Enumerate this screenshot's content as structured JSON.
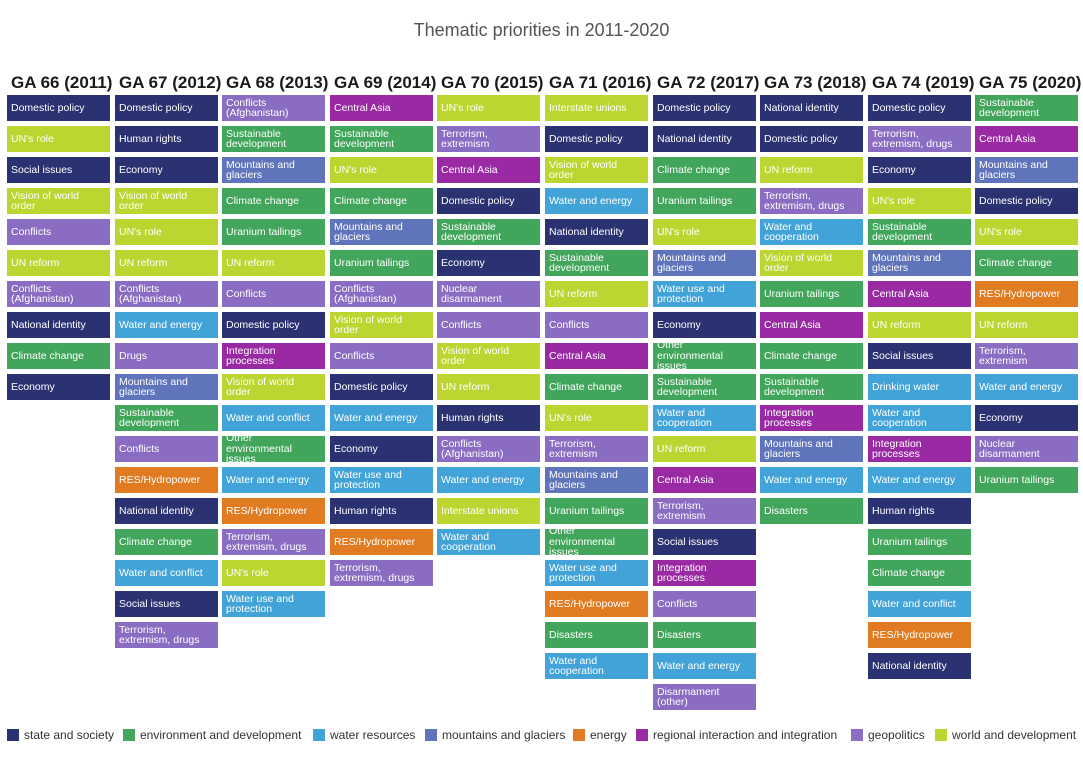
{
  "title": "Thematic priorities in 2011-2020",
  "categories": {
    "state": {
      "label": "state and society",
      "color": "#2a3272"
    },
    "env": {
      "label": "environment and development",
      "color": "#41a55b"
    },
    "water": {
      "label": "water resources",
      "color": "#41a3d7"
    },
    "mtn": {
      "label": "mountains and glaciers",
      "color": "#5f74ba"
    },
    "energy": {
      "label": "energy",
      "color": "#e07b22"
    },
    "regional": {
      "label": "regional interaction and integration",
      "color": "#9a2aa4"
    },
    "geo": {
      "label": "geopolitics",
      "color": "#8a6cc2"
    },
    "world": {
      "label": "world and development",
      "color": "#bcd530"
    }
  },
  "legend_order": [
    "state",
    "env",
    "water",
    "mtn",
    "energy",
    "regional",
    "geo",
    "world"
  ],
  "chart_data": {
    "type": "table",
    "columns": [
      {
        "header": "GA 66 (2011)",
        "items": [
          {
            "label": "Domestic policy",
            "cat": "state"
          },
          {
            "label": "UN's role",
            "cat": "world"
          },
          {
            "label": "Social issues",
            "cat": "state"
          },
          {
            "label": "Vision of world order",
            "cat": "world"
          },
          {
            "label": "Conflicts",
            "cat": "geo"
          },
          {
            "label": "UN reform",
            "cat": "world"
          },
          {
            "label": "Conflicts (Afghanistan)",
            "cat": "geo"
          },
          {
            "label": "National identity",
            "cat": "state"
          },
          {
            "label": "Climate change",
            "cat": "env"
          },
          {
            "label": "Economy",
            "cat": "state"
          }
        ]
      },
      {
        "header": "GA 67 (2012)",
        "items": [
          {
            "label": "Domestic policy",
            "cat": "state"
          },
          {
            "label": "Human rights",
            "cat": "state"
          },
          {
            "label": "Economy",
            "cat": "state"
          },
          {
            "label": "Vision of world order",
            "cat": "world"
          },
          {
            "label": "UN's role",
            "cat": "world"
          },
          {
            "label": "UN reform",
            "cat": "world"
          },
          {
            "label": "Conflicts (Afghanistan)",
            "cat": "geo"
          },
          {
            "label": "Water and energy",
            "cat": "water"
          },
          {
            "label": "Drugs",
            "cat": "geo"
          },
          {
            "label": "Mountains and glaciers",
            "cat": "mtn"
          },
          {
            "label": "Sustainable development",
            "cat": "env"
          },
          {
            "label": "Conflicts",
            "cat": "geo"
          },
          {
            "label": "RES/Hydropower",
            "cat": "energy"
          },
          {
            "label": "National identity",
            "cat": "state"
          },
          {
            "label": "Climate change",
            "cat": "env"
          },
          {
            "label": "Water and conflict",
            "cat": "water"
          },
          {
            "label": "Social issues",
            "cat": "state"
          },
          {
            "label": "Terrorism, extremism, drugs",
            "cat": "geo"
          }
        ]
      },
      {
        "header": "GA 68 (2013)",
        "items": [
          {
            "label": "Conflicts (Afghanistan)",
            "cat": "geo"
          },
          {
            "label": "Sustainable development",
            "cat": "env"
          },
          {
            "label": "Mountains and glaciers",
            "cat": "mtn"
          },
          {
            "label": "Climate change",
            "cat": "env"
          },
          {
            "label": "Uranium tailings",
            "cat": "env"
          },
          {
            "label": "UN reform",
            "cat": "world"
          },
          {
            "label": "Conflicts",
            "cat": "geo"
          },
          {
            "label": "Domestic policy",
            "cat": "state"
          },
          {
            "label": "Integration processes",
            "cat": "regional"
          },
          {
            "label": "Vision of world order",
            "cat": "world"
          },
          {
            "label": "Water and conflict",
            "cat": "water"
          },
          {
            "label": "Other environmental issues",
            "cat": "env"
          },
          {
            "label": "Water and energy",
            "cat": "water"
          },
          {
            "label": "RES/Hydropower",
            "cat": "energy"
          },
          {
            "label": "Terrorism, extremism, drugs",
            "cat": "geo"
          },
          {
            "label": "UN's role",
            "cat": "world"
          },
          {
            "label": "Water use and protection",
            "cat": "water"
          }
        ]
      },
      {
        "header": "GA 69 (2014)",
        "items": [
          {
            "label": "Central Asia",
            "cat": "regional"
          },
          {
            "label": "Sustainable development",
            "cat": "env"
          },
          {
            "label": "UN's role",
            "cat": "world"
          },
          {
            "label": "Climate change",
            "cat": "env"
          },
          {
            "label": "Mountains and glaciers",
            "cat": "mtn"
          },
          {
            "label": "Uranium tailings",
            "cat": "env"
          },
          {
            "label": "Conflicts (Afghanistan)",
            "cat": "geo"
          },
          {
            "label": "Vision of world order",
            "cat": "world"
          },
          {
            "label": "Conflicts",
            "cat": "geo"
          },
          {
            "label": "Domestic policy",
            "cat": "state"
          },
          {
            "label": "Water and energy",
            "cat": "water"
          },
          {
            "label": "Economy",
            "cat": "state"
          },
          {
            "label": "Water use and protection",
            "cat": "water"
          },
          {
            "label": "Human rights",
            "cat": "state"
          },
          {
            "label": "RES/Hydropower",
            "cat": "energy"
          },
          {
            "label": "Terrorism, extremism, drugs",
            "cat": "geo"
          }
        ]
      },
      {
        "header": "GA 70 (2015)",
        "items": [
          {
            "label": "UN's role",
            "cat": "world"
          },
          {
            "label": "Terrorism, extremism",
            "cat": "geo"
          },
          {
            "label": "Central Asia",
            "cat": "regional"
          },
          {
            "label": "Domestic policy",
            "cat": "state"
          },
          {
            "label": "Sustainable development",
            "cat": "env"
          },
          {
            "label": "Economy",
            "cat": "state"
          },
          {
            "label": "Nuclear disarmament",
            "cat": "geo"
          },
          {
            "label": "Conflicts",
            "cat": "geo"
          },
          {
            "label": "Vision of world order",
            "cat": "world"
          },
          {
            "label": "UN reform",
            "cat": "world"
          },
          {
            "label": "Human rights",
            "cat": "state"
          },
          {
            "label": "Conflicts (Afghanistan)",
            "cat": "geo"
          },
          {
            "label": "Water and energy",
            "cat": "water"
          },
          {
            "label": "Interstate unions",
            "cat": "world"
          },
          {
            "label": "Water and cooperation",
            "cat": "water"
          }
        ]
      },
      {
        "header": "GA 71 (2016)",
        "items": [
          {
            "label": "Interstate unions",
            "cat": "world"
          },
          {
            "label": "Domestic policy",
            "cat": "state"
          },
          {
            "label": "Vision of world order",
            "cat": "world"
          },
          {
            "label": "Water and energy",
            "cat": "water"
          },
          {
            "label": "National identity",
            "cat": "state"
          },
          {
            "label": "Sustainable development",
            "cat": "env"
          },
          {
            "label": "UN reform",
            "cat": "world"
          },
          {
            "label": "Conflicts",
            "cat": "geo"
          },
          {
            "label": "Central Asia",
            "cat": "regional"
          },
          {
            "label": "Climate change",
            "cat": "env"
          },
          {
            "label": "UN's role",
            "cat": "world"
          },
          {
            "label": "Terrorism, extremism",
            "cat": "geo"
          },
          {
            "label": "Mountains and glaciers",
            "cat": "mtn"
          },
          {
            "label": "Uranium tailings",
            "cat": "env"
          },
          {
            "label": "Other environmental issues",
            "cat": "env"
          },
          {
            "label": "Water use and protection",
            "cat": "water"
          },
          {
            "label": "RES/Hydropower",
            "cat": "energy"
          },
          {
            "label": "Disasters",
            "cat": "env"
          },
          {
            "label": "Water and cooperation",
            "cat": "water"
          }
        ]
      },
      {
        "header": "GA 72 (2017)",
        "items": [
          {
            "label": "Domestic policy",
            "cat": "state"
          },
          {
            "label": "National identity",
            "cat": "state"
          },
          {
            "label": "Climate change",
            "cat": "env"
          },
          {
            "label": "Uranium tailings",
            "cat": "env"
          },
          {
            "label": "UN's role",
            "cat": "world"
          },
          {
            "label": "Mountains and glaciers",
            "cat": "mtn"
          },
          {
            "label": "Water use and protection",
            "cat": "water"
          },
          {
            "label": "Economy",
            "cat": "state"
          },
          {
            "label": "Other environmental issues",
            "cat": "env"
          },
          {
            "label": "Sustainable development",
            "cat": "env"
          },
          {
            "label": "Water and cooperation",
            "cat": "water"
          },
          {
            "label": "UN reform",
            "cat": "world"
          },
          {
            "label": "Central Asia",
            "cat": "regional"
          },
          {
            "label": "Terrorism, extremism",
            "cat": "geo"
          },
          {
            "label": "Social issues",
            "cat": "state"
          },
          {
            "label": "Integration processes",
            "cat": "regional"
          },
          {
            "label": "Conflicts",
            "cat": "geo"
          },
          {
            "label": "Disasters",
            "cat": "env"
          },
          {
            "label": "Water and energy",
            "cat": "water"
          },
          {
            "label": "Disarmament (other)",
            "cat": "geo"
          }
        ]
      },
      {
        "header": "GA 73 (2018)",
        "items": [
          {
            "label": "National identity",
            "cat": "state"
          },
          {
            "label": "Domestic policy",
            "cat": "state"
          },
          {
            "label": "UN reform",
            "cat": "world"
          },
          {
            "label": "Terrorism, extremism, drugs",
            "cat": "geo"
          },
          {
            "label": "Water and cooperation",
            "cat": "water"
          },
          {
            "label": "Vision of world order",
            "cat": "world"
          },
          {
            "label": "Uranium tailings",
            "cat": "env"
          },
          {
            "label": "Central Asia",
            "cat": "regional"
          },
          {
            "label": "Climate change",
            "cat": "env"
          },
          {
            "label": "Sustainable development",
            "cat": "env"
          },
          {
            "label": "Integration processes",
            "cat": "regional"
          },
          {
            "label": "Mountains and glaciers",
            "cat": "mtn"
          },
          {
            "label": "Water and energy",
            "cat": "water"
          },
          {
            "label": "Disasters",
            "cat": "env"
          }
        ]
      },
      {
        "header": "GA 74 (2019)",
        "items": [
          {
            "label": "Domestic policy",
            "cat": "state"
          },
          {
            "label": "Terrorism, extremism, drugs",
            "cat": "geo"
          },
          {
            "label": "Economy",
            "cat": "state"
          },
          {
            "label": "UN's role",
            "cat": "world"
          },
          {
            "label": "Sustainable development",
            "cat": "env"
          },
          {
            "label": "Mountains and glaciers",
            "cat": "mtn"
          },
          {
            "label": "Central Asia",
            "cat": "regional"
          },
          {
            "label": "UN reform",
            "cat": "world"
          },
          {
            "label": "Social issues",
            "cat": "state"
          },
          {
            "label": "Drinking water",
            "cat": "water"
          },
          {
            "label": "Water and cooperation",
            "cat": "water"
          },
          {
            "label": "Integration processes",
            "cat": "regional"
          },
          {
            "label": "Water and energy",
            "cat": "water"
          },
          {
            "label": "Human rights",
            "cat": "state"
          },
          {
            "label": "Uranium tailings",
            "cat": "env"
          },
          {
            "label": "Climate change",
            "cat": "env"
          },
          {
            "label": "Water and conflict",
            "cat": "water"
          },
          {
            "label": "RES/Hydropower",
            "cat": "energy"
          },
          {
            "label": "National identity",
            "cat": "state"
          }
        ]
      },
      {
        "header": "GA 75 (2020)",
        "items": [
          {
            "label": "Sustainable development",
            "cat": "env"
          },
          {
            "label": "Central Asia",
            "cat": "regional"
          },
          {
            "label": "Mountains and glaciers",
            "cat": "mtn"
          },
          {
            "label": "Domestic policy",
            "cat": "state"
          },
          {
            "label": "UN's role",
            "cat": "world"
          },
          {
            "label": "Climate change",
            "cat": "env"
          },
          {
            "label": "RES/Hydropower",
            "cat": "energy"
          },
          {
            "label": "UN reform",
            "cat": "world"
          },
          {
            "label": "Terrorism, extremism",
            "cat": "geo"
          },
          {
            "label": "Water and energy",
            "cat": "water"
          },
          {
            "label": "Economy",
            "cat": "state"
          },
          {
            "label": "Nuclear disarmament",
            "cat": "geo"
          },
          {
            "label": "Uranium tailings",
            "cat": "env"
          }
        ]
      }
    ]
  }
}
